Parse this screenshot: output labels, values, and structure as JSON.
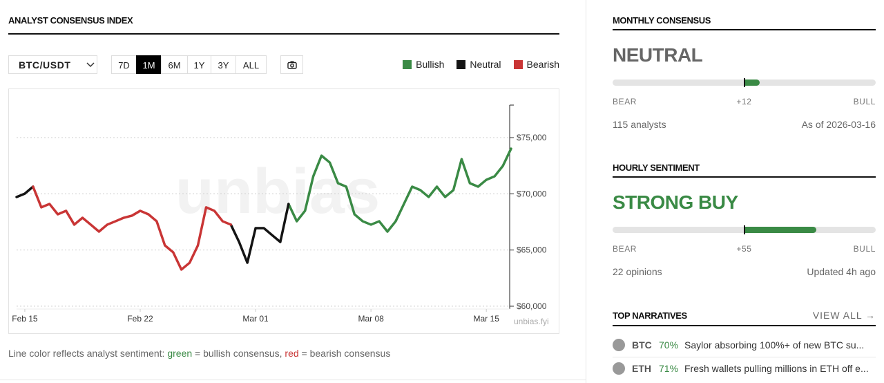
{
  "header": {
    "title": "ANALYST CONSENSUS INDEX"
  },
  "controls": {
    "pair": "BTC/USDT",
    "ranges": [
      "7D",
      "1M",
      "6M",
      "1Y",
      "3Y",
      "ALL"
    ],
    "active_range": "1M"
  },
  "chart_data": {
    "type": "line",
    "categories": [
      null,
      "Feb 15",
      null,
      null,
      null,
      null,
      null,
      null,
      null,
      null,
      null,
      null,
      null,
      null,
      null,
      "Feb 22",
      null,
      null,
      null,
      null,
      null,
      null,
      null,
      null,
      null,
      null,
      null,
      null,
      null,
      "Mar 01",
      null,
      null,
      null,
      null,
      null,
      null,
      null,
      null,
      null,
      null,
      null,
      null,
      null,
      "Mar 08",
      null,
      null,
      null,
      null,
      null,
      null,
      null,
      null,
      null,
      null,
      null,
      null,
      null,
      "Mar 15",
      null,
      null,
      null
    ],
    "series": [
      {
        "name": "Bullish",
        "color": "#3a8a45",
        "values": [
          null,
          null,
          null,
          null,
          null,
          null,
          null,
          null,
          null,
          null,
          null,
          null,
          null,
          null,
          null,
          null,
          null,
          null,
          null,
          null,
          null,
          null,
          null,
          null,
          null,
          null,
          null,
          null,
          null,
          null,
          null,
          null,
          null,
          69100,
          67560,
          68490,
          71560,
          73400,
          72790,
          70950,
          70640,
          68180,
          67560,
          67260,
          67560,
          66640,
          67560,
          69100,
          70640,
          70330,
          69720,
          70640,
          69720,
          70330,
          73090,
          70950,
          70640,
          71250,
          71560,
          72480,
          74020
        ]
      },
      {
        "name": "Neutral",
        "color": "#141414",
        "values": [
          69720,
          70020,
          70640,
          null,
          null,
          null,
          null,
          null,
          null,
          null,
          null,
          null,
          null,
          null,
          null,
          null,
          null,
          null,
          null,
          null,
          null,
          null,
          null,
          null,
          null,
          null,
          67260,
          65720,
          63870,
          66950,
          66950,
          66330,
          65720,
          69100,
          null,
          null,
          null,
          null,
          null,
          null,
          null,
          null,
          null,
          null,
          null,
          null,
          null,
          null,
          null,
          null,
          null,
          null,
          null,
          null,
          null,
          null,
          null,
          null,
          null,
          null,
          null
        ]
      },
      {
        "name": "Bearish",
        "color": "#c93535",
        "values": [
          null,
          null,
          70640,
          68800,
          69100,
          68180,
          68490,
          67260,
          67870,
          67260,
          66640,
          67260,
          67560,
          67870,
          68060,
          68490,
          68180,
          67560,
          65410,
          64800,
          63260,
          63870,
          65410,
          68800,
          68490,
          67560,
          67260,
          null,
          null,
          null,
          null,
          null,
          null,
          null,
          null,
          null,
          null,
          null,
          null,
          null,
          null,
          null,
          null,
          null,
          null,
          null,
          null,
          null,
          null,
          null,
          null,
          null,
          null,
          null,
          null,
          null,
          null,
          null,
          null,
          null,
          null
        ]
      }
    ],
    "ylim": [
      59750,
      77900
    ],
    "yticks": [
      {
        "value": 60000,
        "label": "$60,000"
      },
      {
        "value": 65000,
        "label": "$65,000"
      },
      {
        "value": 70000,
        "label": "$70,000"
      },
      {
        "value": 75000,
        "label": "$75,000"
      }
    ],
    "grid": true,
    "legend": "top-right",
    "watermark": "unbias",
    "source": "unbias.fyi"
  },
  "caption": {
    "parts": [
      "Line color reflects analyst sentiment: ",
      "green",
      " = bullish consensus, ",
      "red",
      " = bearish consensus"
    ]
  },
  "monthly": {
    "title": "MONTHLY CONSENSUS",
    "verdict": "NEUTRAL",
    "gauge": {
      "value": 12,
      "label": "+12",
      "lim": [
        -100,
        100
      ]
    },
    "left": "BEAR",
    "right": "BULL",
    "count": "115 analysts",
    "as_of": "As of 2026-03-16"
  },
  "hourly": {
    "title": "HOURLY SENTIMENT",
    "verdict": "STRONG BUY",
    "gauge": {
      "value": 55,
      "label": "+55",
      "lim": [
        -100,
        100
      ]
    },
    "left": "BEAR",
    "right": "BULL",
    "count": "22 opinions",
    "as_of": "Updated 4h ago"
  },
  "narratives": {
    "title": "TOP NARRATIVES",
    "link": "VIEW ALL →",
    "items": [
      {
        "coin": "BTC",
        "pct": "70%",
        "text": "Saylor absorbing 100%+ of new BTC su..."
      },
      {
        "coin": "ETH",
        "pct": "71%",
        "text": "Fresh wallets pulling millions in ETH off e..."
      }
    ]
  }
}
